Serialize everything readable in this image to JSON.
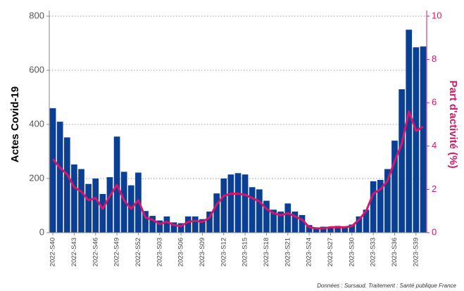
{
  "chart_data": {
    "type": "bar_line",
    "y_label": "Actes Covid-19",
    "y2_label": "Part d'activité (%)",
    "source": "Données : Sursaud. Traitement : Santé publique France",
    "categories": [
      "2022-S40",
      null,
      null,
      "2022-S43",
      null,
      null,
      "2022-S46",
      null,
      null,
      "2022-S49",
      null,
      null,
      "2022-S52",
      null,
      null,
      "2023-S03",
      null,
      null,
      "2023-S06",
      null,
      null,
      "2023-S09",
      null,
      null,
      "2023-S12",
      null,
      null,
      "2023-S15",
      null,
      null,
      "2023-S18",
      null,
      null,
      "2023-S21",
      null,
      null,
      "2023-S24",
      null,
      null,
      "2023-S27",
      null,
      null,
      "2023-S30",
      null,
      null,
      "2023-S33",
      null,
      null,
      "2023-S36",
      null,
      null,
      "2023-S39",
      null
    ],
    "series": [
      {
        "type": "bar",
        "color": "#0b3f94",
        "axis": "y",
        "values": [
          460,
          410,
          352,
          252,
          235,
          180,
          200,
          143,
          205,
          355,
          225,
          175,
          222,
          80,
          62,
          45,
          60,
          38,
          35,
          60,
          60,
          50,
          78,
          145,
          200,
          215,
          220,
          215,
          168,
          160,
          118,
          85,
          78,
          108,
          78,
          65,
          28,
          18,
          22,
          22,
          25,
          22,
          30,
          60,
          85,
          190,
          195,
          235,
          340,
          530,
          750,
          685,
          688
        ]
      },
      {
        "type": "line",
        "color": "#d6156c",
        "axis": "y2",
        "values": [
          3.4,
          3.0,
          2.7,
          2.1,
          1.9,
          1.5,
          1.6,
          1.1,
          1.7,
          2.2,
          1.5,
          1.1,
          1.5,
          0.7,
          0.6,
          0.4,
          0.5,
          0.35,
          0.3,
          0.5,
          0.55,
          0.5,
          0.7,
          1.3,
          1.7,
          1.8,
          1.8,
          1.75,
          1.6,
          1.45,
          1.1,
          0.9,
          0.8,
          0.9,
          0.75,
          0.6,
          0.25,
          0.2,
          0.2,
          0.25,
          0.25,
          0.25,
          0.3,
          0.6,
          1.0,
          1.8,
          2.0,
          2.4,
          3.3,
          4.1,
          5.6,
          4.7,
          4.9
        ]
      }
    ],
    "ylim": [
      0,
      800
    ],
    "yticks": [
      0,
      200,
      400,
      600,
      800
    ],
    "y2lim": [
      0,
      10
    ],
    "y2ticks": [
      0,
      2,
      4,
      6,
      8,
      10
    ],
    "grid": true
  }
}
